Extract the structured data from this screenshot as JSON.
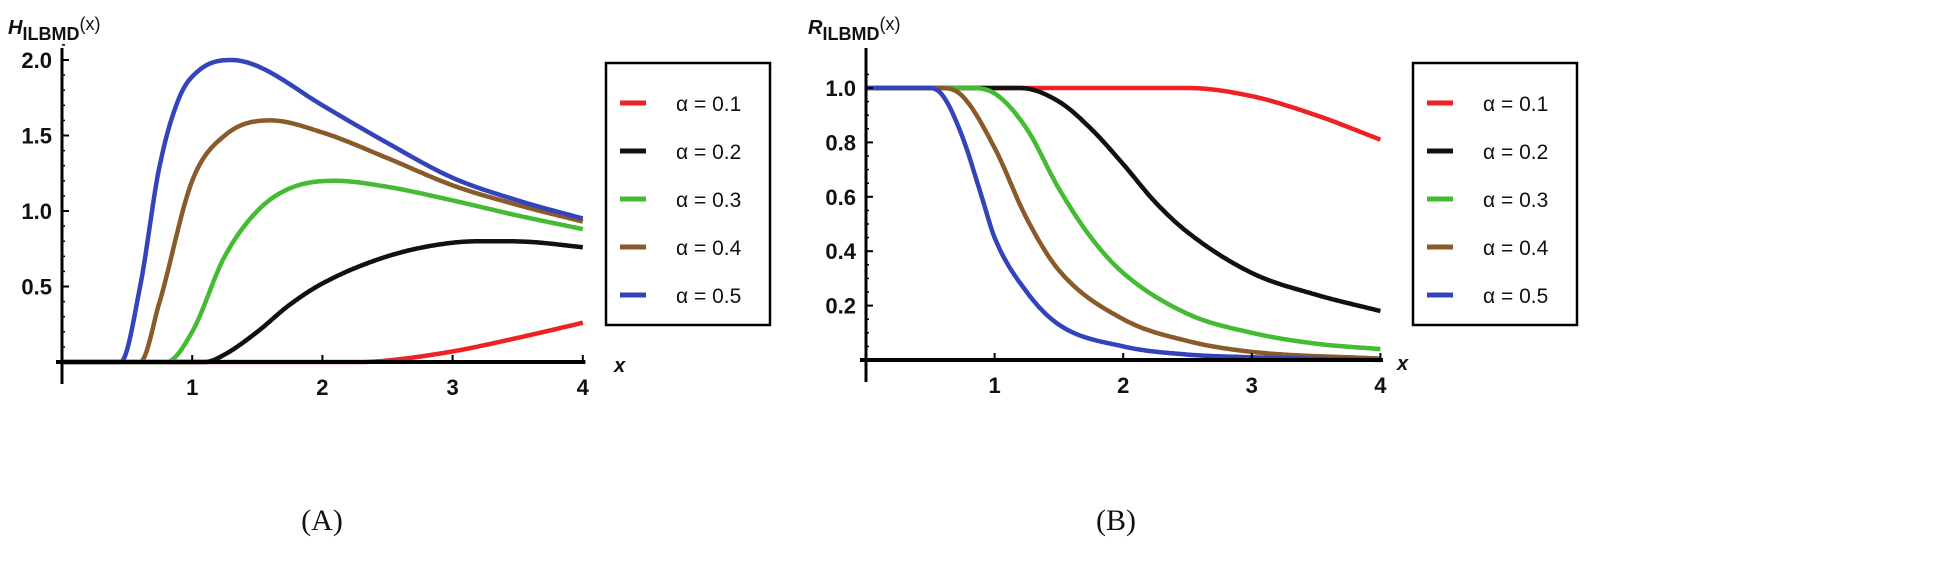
{
  "chart_data": [
    {
      "type": "line",
      "panel": "A",
      "caption": "(A)",
      "ylabel_main": "H",
      "ylabel_sub": "ILBMD",
      "ylabel_arg": "(x)",
      "xlabel": "x",
      "xlim": [
        0,
        4.02
      ],
      "ylim": [
        0,
        2.1
      ],
      "xticks": [
        "1",
        "2",
        "3",
        "4"
      ],
      "yticks": [
        "0.5",
        "1.0",
        "1.5",
        "2.0"
      ],
      "legend_position": "right",
      "series": [
        {
          "name": "α = 0.1",
          "color": "#ee2222",
          "x": [
            0,
            2.3,
            2.5,
            3.0,
            3.5,
            4.0
          ],
          "y": [
            0,
            0,
            0.01,
            0.07,
            0.16,
            0.26
          ]
        },
        {
          "name": "α = 0.2",
          "color": "#111111",
          "x": [
            0,
            1.1,
            1.25,
            1.5,
            1.75,
            2.0,
            2.5,
            3.0,
            3.3,
            3.6,
            4.0
          ],
          "y": [
            0,
            0,
            0.05,
            0.2,
            0.38,
            0.52,
            0.7,
            0.79,
            0.8,
            0.795,
            0.76
          ]
        },
        {
          "name": "α = 0.3",
          "color": "#44bb33",
          "x": [
            0,
            0.8,
            1.0,
            1.25,
            1.5,
            1.75,
            2.1,
            2.5,
            3.0,
            3.5,
            4.0
          ],
          "y": [
            0,
            0,
            0.2,
            0.7,
            1.0,
            1.15,
            1.2,
            1.16,
            1.07,
            0.97,
            0.88
          ]
        },
        {
          "name": "α = 0.4",
          "color": "#8b5a2b",
          "x": [
            0,
            0.6,
            0.75,
            1.0,
            1.25,
            1.6,
            2.0,
            2.5,
            3.0,
            3.5,
            4.0
          ],
          "y": [
            0,
            0,
            0.4,
            1.2,
            1.5,
            1.6,
            1.52,
            1.35,
            1.17,
            1.04,
            0.93
          ]
        },
        {
          "name": "α = 0.5",
          "color": "#3344bb",
          "x": [
            0,
            0.45,
            0.6,
            0.75,
            0.9,
            1.05,
            1.3,
            1.5,
            2.0,
            2.5,
            3.0,
            3.5,
            4.0
          ],
          "y": [
            0,
            0,
            0.5,
            1.3,
            1.75,
            1.93,
            2.0,
            1.96,
            1.7,
            1.45,
            1.22,
            1.07,
            0.95
          ]
        }
      ]
    },
    {
      "type": "line",
      "panel": "B",
      "caption": "(B)",
      "ylabel_main": "R",
      "ylabel_sub": "ILBMD",
      "ylabel_arg": "(x)",
      "xlabel": "x",
      "xlim": [
        0,
        4.02
      ],
      "ylim": [
        0,
        1.05
      ],
      "xticks": [
        "1",
        "2",
        "3",
        "4"
      ],
      "yticks": [
        "0.2",
        "0.4",
        "0.6",
        "0.8",
        "1.0"
      ],
      "legend_position": "right",
      "series": [
        {
          "name": "α = 0.1",
          "color": "#ee2222",
          "x": [
            0,
            2.5,
            3.0,
            3.5,
            4.0
          ],
          "y": [
            1,
            1,
            0.97,
            0.9,
            0.81
          ]
        },
        {
          "name": "α = 0.2",
          "color": "#111111",
          "x": [
            0,
            1.2,
            1.5,
            1.75,
            2.0,
            2.25,
            2.5,
            3.0,
            3.5,
            4.0
          ],
          "y": [
            1,
            1,
            0.95,
            0.85,
            0.72,
            0.58,
            0.47,
            0.32,
            0.24,
            0.18
          ]
        },
        {
          "name": "α = 0.3",
          "color": "#44bb33",
          "x": [
            0,
            0.8,
            1.0,
            1.25,
            1.5,
            1.75,
            2.0,
            2.5,
            3.0,
            3.5,
            4.0
          ],
          "y": [
            1,
            1,
            0.98,
            0.85,
            0.63,
            0.45,
            0.32,
            0.17,
            0.1,
            0.06,
            0.04
          ]
        },
        {
          "name": "α = 0.4",
          "color": "#8b5a2b",
          "x": [
            0,
            0.6,
            0.75,
            1.0,
            1.25,
            1.5,
            2.0,
            2.5,
            3.0,
            4.0
          ],
          "y": [
            1,
            1,
            0.97,
            0.78,
            0.52,
            0.33,
            0.15,
            0.07,
            0.03,
            0.005
          ]
        },
        {
          "name": "α = 0.5",
          "color": "#3344bb",
          "x": [
            0,
            0.5,
            0.6,
            0.75,
            0.9,
            1.0,
            1.25,
            1.5,
            2.0,
            2.5,
            3.0,
            4.0
          ],
          "y": [
            1,
            1,
            0.97,
            0.82,
            0.6,
            0.45,
            0.25,
            0.13,
            0.05,
            0.02,
            0.01,
            0
          ]
        }
      ]
    }
  ]
}
